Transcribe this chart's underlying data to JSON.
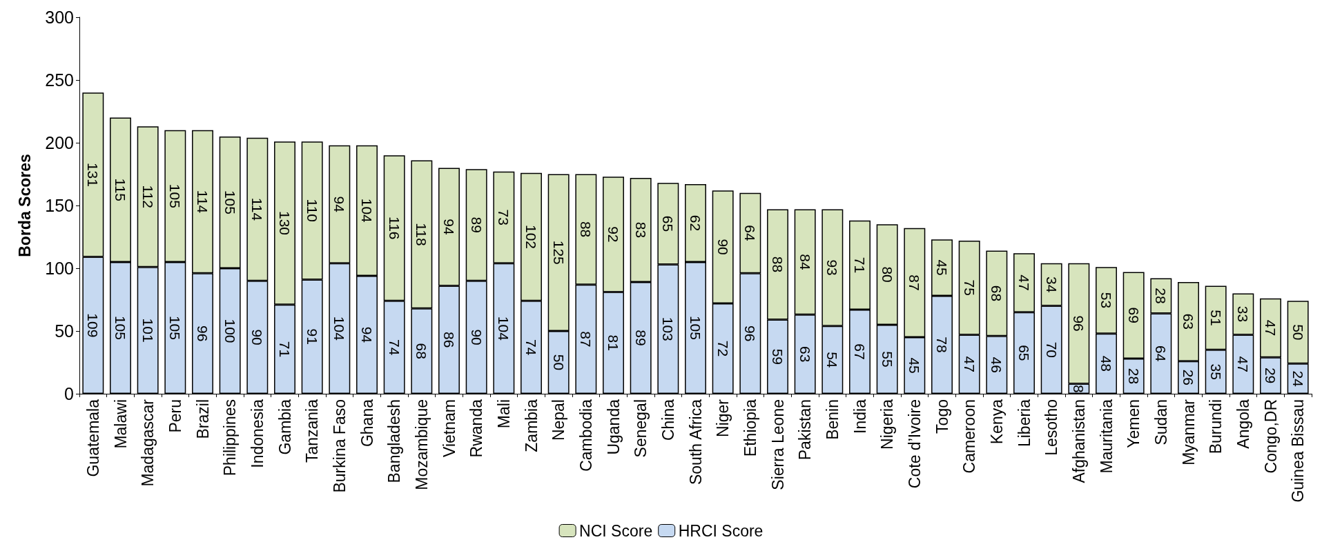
{
  "chart_data": {
    "type": "bar",
    "stacked": true,
    "ylabel": "Borda Scores",
    "ylim": [
      0,
      300
    ],
    "yticks": [
      0,
      50,
      100,
      150,
      200,
      250,
      300
    ],
    "grid": false,
    "legend": "bottom",
    "data_labels": true,
    "categories": [
      "Guatemala",
      "Malawi",
      "Madagascar",
      "Peru",
      "Brazil",
      "Philippines",
      "Indonesia",
      "Gambia",
      "Tanzania",
      "Burkina Faso",
      "Ghana",
      "Bangladesh",
      "Mozambique",
      "Vietnam",
      "Rwanda",
      "Mali",
      "Zambia",
      "Nepal",
      "Cambodia",
      "Uganda",
      "Senegal",
      "China",
      "South Africa",
      "Niger",
      "Ethiopia",
      "Sierra Leone",
      "Pakistan",
      "Benin",
      "India",
      "Nigeria",
      "Cote d’Ivoire",
      "Togo",
      "Cameroon",
      "Kenya",
      "Liberia",
      "Lesotho",
      "Afghanistan",
      "Mauritania",
      "Yemen",
      "Sudan",
      "Myanmar",
      "Burundi",
      "Angola",
      "Congo,DR",
      "Guinea Bissau"
    ],
    "series": [
      {
        "name": "HRCI Score",
        "color": "#c6d9f1",
        "values": [
          109,
          105,
          101,
          105,
          96,
          100,
          90,
          71,
          91,
          104,
          94,
          74,
          68,
          86,
          90,
          104,
          74,
          50,
          87,
          81,
          89,
          103,
          105,
          72,
          96,
          59,
          63,
          54,
          67,
          55,
          45,
          78,
          47,
          46,
          65,
          70,
          8,
          48,
          28,
          64,
          26,
          35,
          47,
          29,
          24
        ]
      },
      {
        "name": "NCI Score",
        "color": "#d7e4bd",
        "values": [
          131,
          115,
          112,
          105,
          114,
          105,
          114,
          130,
          110,
          94,
          104,
          116,
          118,
          94,
          89,
          73,
          102,
          125,
          88,
          92,
          83,
          65,
          62,
          90,
          64,
          88,
          84,
          93,
          71,
          80,
          87,
          45,
          75,
          68,
          47,
          34,
          96,
          53,
          69,
          28,
          63,
          51,
          33,
          47,
          50
        ]
      }
    ]
  }
}
